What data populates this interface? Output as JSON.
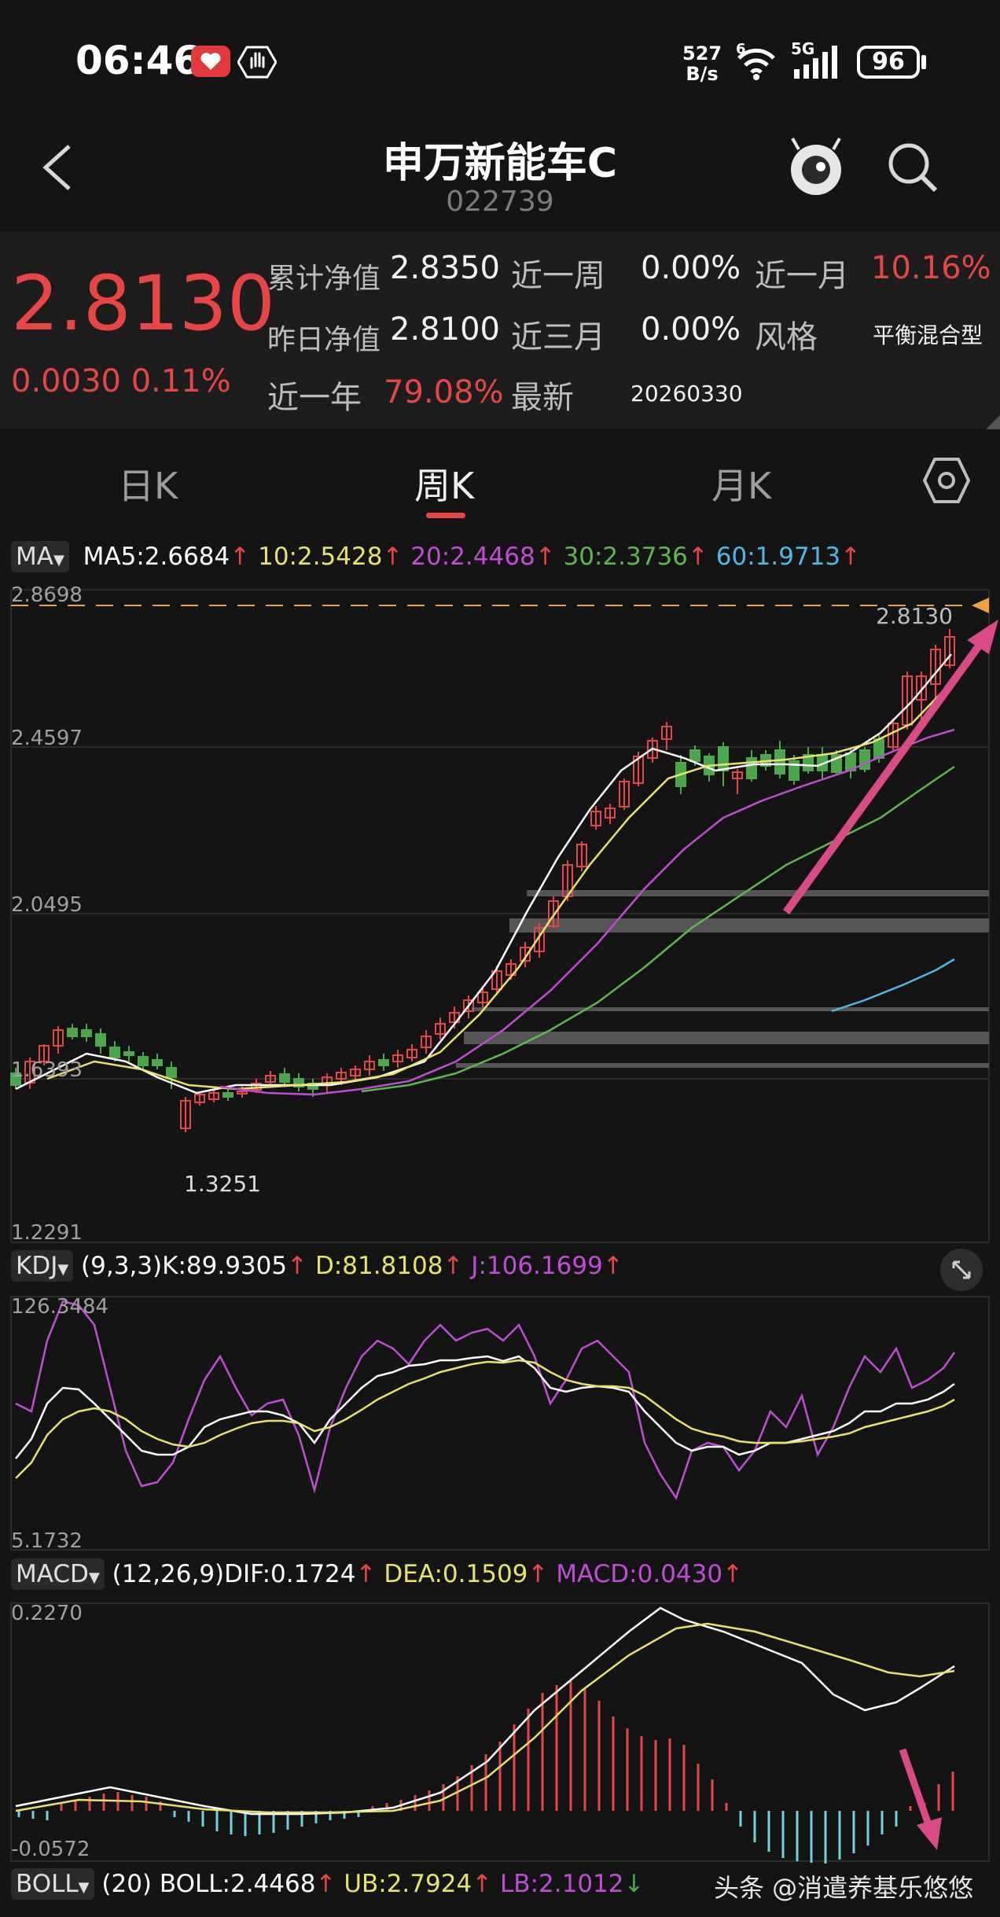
{
  "status_bar": {
    "time": "06:46",
    "net_speed_top": "527",
    "net_speed_bottom": "B/s",
    "wifi_badge": "6",
    "signal_label": "5G",
    "battery": "96"
  },
  "header": {
    "title": "申万新能车C",
    "code": "022739"
  },
  "fund": {
    "price": "2.8130",
    "change": "0.0030",
    "change_pct": "0.11%",
    "rows": [
      {
        "l1": "累计净值",
        "v1": "2.8350",
        "l2": "近一周",
        "v2": "0.00%",
        "l3": "近一月",
        "v3": "10.16%"
      },
      {
        "l1": "昨日净值",
        "v1": "2.8100",
        "l2": "近三月",
        "v2": "0.00%",
        "l3": "风格",
        "v3": "平衡混合型"
      },
      {
        "l1": "近一年",
        "v1": "79.08%",
        "l2": "最新",
        "v2": "20260330"
      }
    ]
  },
  "tabs": [
    "日K",
    "周K",
    "月K"
  ],
  "active_tab": "周K",
  "ma": {
    "selector": "MA",
    "ma5": "MA5:2.6684",
    "ma10": "10:2.5428",
    "ma20": "20:2.4468",
    "ma30": "30:2.3736",
    "ma60": "60:1.9713",
    "arrow": "↑",
    "axis": [
      "2.8698",
      "2.4597",
      "2.0495",
      "1.6393",
      "1.2291"
    ],
    "low_label": "1.3251",
    "last_label": "2.8130",
    "colors": {
      "ma5": "#ffffff",
      "ma10": "#e8e26a",
      "ma20": "#c24bd8",
      "ma30": "#5bb84a",
      "ma60": "#4fb8e6",
      "up": "#e84545",
      "down": "#4aa84a"
    }
  },
  "kdj": {
    "selector": "KDJ",
    "params": "(9,3,3)",
    "k": "K:89.9305",
    "d": "D:81.8108",
    "j": "J:106.1699",
    "arrow": "↑",
    "axis_top": "126.3484",
    "axis_bottom": "5.1732"
  },
  "macd": {
    "selector": "MACD",
    "params": "(12,26,9)",
    "dif": "DIF:0.1724",
    "dea": "DEA:0.1509",
    "macd": "MACD:0.0430",
    "arrow": "↑",
    "axis_top": "0.2270",
    "axis_bottom": "-0.0572"
  },
  "boll": {
    "selector": "BOLL",
    "params": "(20)",
    "boll": "BOLL:2.4468",
    "ub": "UB:2.7924",
    "lb": "LB:2.1012",
    "up_arrow": "↑",
    "down_arrow": "↓"
  },
  "watermark": "头条 @消遣养基乐悠悠",
  "icons": [
    "back-icon",
    "robot-mascot-icon",
    "search-icon",
    "settings-hexagon-icon",
    "expand-icon",
    "dropdown-icon"
  ]
}
